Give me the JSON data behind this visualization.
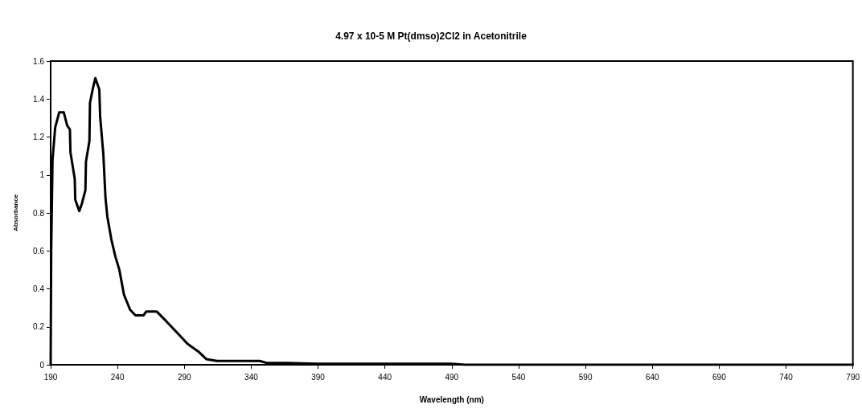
{
  "chart_data": {
    "type": "line",
    "title": "4.97 x 10-5 M Pt(dmso)2Cl2 in Acetonitrile",
    "xlabel": "Wavelength (nm)",
    "ylabel": "Absorbance",
    "x": [
      190,
      190.4,
      191.4,
      193.4,
      196.4,
      199.8,
      202.4,
      204.4,
      204.8,
      208,
      208.4,
      211.4,
      213.4,
      216,
      216.4,
      219,
      219.4,
      221.4,
      223.4,
      226.4,
      227,
      229.4,
      231,
      232.4,
      235.4,
      238.4,
      241.4,
      244.8,
      249.4,
      253.4,
      259.4,
      261.4,
      269.4,
      276.4,
      284.4,
      292.4,
      300.4,
      306.4,
      314.4,
      346.4,
      351.4,
      366.4,
      390,
      490,
      500,
      790
    ],
    "series": [
      {
        "color": "#000000",
        "values": [
          0,
          0.6,
          1.08,
          1.25,
          1.33,
          1.33,
          1.26,
          1.24,
          1.12,
          0.98,
          0.87,
          0.81,
          0.85,
          0.92,
          1.07,
          1.18,
          1.38,
          1.45,
          1.51,
          1.45,
          1.31,
          1.11,
          0.88,
          0.78,
          0.66,
          0.57,
          0.5,
          0.37,
          0.29,
          0.26,
          0.26,
          0.28,
          0.28,
          0.23,
          0.17,
          0.11,
          0.07,
          0.03,
          0.02,
          0.02,
          0.01,
          0.01,
          0.005,
          0.005,
          0,
          0
        ]
      }
    ],
    "xlim": [
      190,
      790
    ],
    "xticks": [
      190,
      240,
      290,
      340,
      390,
      440,
      490,
      540,
      590,
      640,
      690,
      740,
      790
    ],
    "ylim": [
      0,
      1.6
    ],
    "yticks": [
      0,
      0.2,
      0.4,
      0.6,
      0.8,
      1,
      1.2,
      1.4,
      1.6
    ],
    "grid": false,
    "marker": "none",
    "line_style": "solid"
  }
}
